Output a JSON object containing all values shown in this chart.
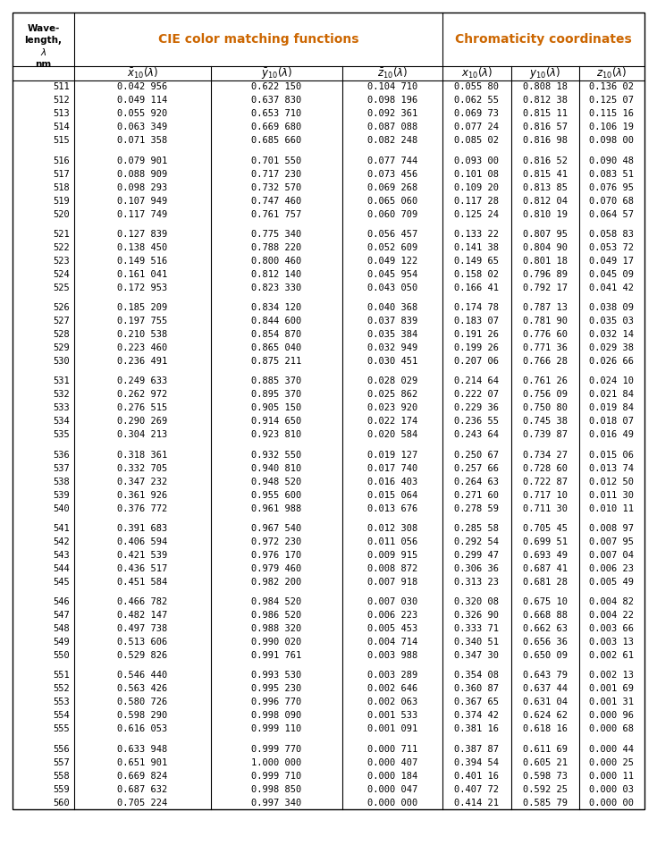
{
  "header_color": "#cc6600",
  "rows": [
    [
      511,
      "0.042 956",
      "0.622 150",
      "0.104 710",
      "0.055 80",
      "0.808 18",
      "0.136 02"
    ],
    [
      512,
      "0.049 114",
      "0.637 830",
      "0.098 196",
      "0.062 55",
      "0.812 38",
      "0.125 07"
    ],
    [
      513,
      "0.055 920",
      "0.653 710",
      "0.092 361",
      "0.069 73",
      "0.815 11",
      "0.115 16"
    ],
    [
      514,
      "0.063 349",
      "0.669 680",
      "0.087 088",
      "0.077 24",
      "0.816 57",
      "0.106 19"
    ],
    [
      515,
      "0.071 358",
      "0.685 660",
      "0.082 248",
      "0.085 02",
      "0.816 98",
      "0.098 00"
    ],
    [
      516,
      "0.079 901",
      "0.701 550",
      "0.077 744",
      "0.093 00",
      "0.816 52",
      "0.090 48"
    ],
    [
      517,
      "0.088 909",
      "0.717 230",
      "0.073 456",
      "0.101 08",
      "0.815 41",
      "0.083 51"
    ],
    [
      518,
      "0.098 293",
      "0.732 570",
      "0.069 268",
      "0.109 20",
      "0.813 85",
      "0.076 95"
    ],
    [
      519,
      "0.107 949",
      "0.747 460",
      "0.065 060",
      "0.117 28",
      "0.812 04",
      "0.070 68"
    ],
    [
      520,
      "0.117 749",
      "0.761 757",
      "0.060 709",
      "0.125 24",
      "0.810 19",
      "0.064 57"
    ],
    [
      521,
      "0.127 839",
      "0.775 340",
      "0.056 457",
      "0.133 22",
      "0.807 95",
      "0.058 83"
    ],
    [
      522,
      "0.138 450",
      "0.788 220",
      "0.052 609",
      "0.141 38",
      "0.804 90",
      "0.053 72"
    ],
    [
      523,
      "0.149 516",
      "0.800 460",
      "0.049 122",
      "0.149 65",
      "0.801 18",
      "0.049 17"
    ],
    [
      524,
      "0.161 041",
      "0.812 140",
      "0.045 954",
      "0.158 02",
      "0.796 89",
      "0.045 09"
    ],
    [
      525,
      "0.172 953",
      "0.823 330",
      "0.043 050",
      "0.166 41",
      "0.792 17",
      "0.041 42"
    ],
    [
      526,
      "0.185 209",
      "0.834 120",
      "0.040 368",
      "0.174 78",
      "0.787 13",
      "0.038 09"
    ],
    [
      527,
      "0.197 755",
      "0.844 600",
      "0.037 839",
      "0.183 07",
      "0.781 90",
      "0.035 03"
    ],
    [
      528,
      "0.210 538",
      "0.854 870",
      "0.035 384",
      "0.191 26",
      "0.776 60",
      "0.032 14"
    ],
    [
      529,
      "0.223 460",
      "0.865 040",
      "0.032 949",
      "0.199 26",
      "0.771 36",
      "0.029 38"
    ],
    [
      530,
      "0.236 491",
      "0.875 211",
      "0.030 451",
      "0.207 06",
      "0.766 28",
      "0.026 66"
    ],
    [
      531,
      "0.249 633",
      "0.885 370",
      "0.028 029",
      "0.214 64",
      "0.761 26",
      "0.024 10"
    ],
    [
      532,
      "0.262 972",
      "0.895 370",
      "0.025 862",
      "0.222 07",
      "0.756 09",
      "0.021 84"
    ],
    [
      533,
      "0.276 515",
      "0.905 150",
      "0.023 920",
      "0.229 36",
      "0.750 80",
      "0.019 84"
    ],
    [
      534,
      "0.290 269",
      "0.914 650",
      "0.022 174",
      "0.236 55",
      "0.745 38",
      "0.018 07"
    ],
    [
      535,
      "0.304 213",
      "0.923 810",
      "0.020 584",
      "0.243 64",
      "0.739 87",
      "0.016 49"
    ],
    [
      536,
      "0.318 361",
      "0.932 550",
      "0.019 127",
      "0.250 67",
      "0.734 27",
      "0.015 06"
    ],
    [
      537,
      "0.332 705",
      "0.940 810",
      "0.017 740",
      "0.257 66",
      "0.728 60",
      "0.013 74"
    ],
    [
      538,
      "0.347 232",
      "0.948 520",
      "0.016 403",
      "0.264 63",
      "0.722 87",
      "0.012 50"
    ],
    [
      539,
      "0.361 926",
      "0.955 600",
      "0.015 064",
      "0.271 60",
      "0.717 10",
      "0.011 30"
    ],
    [
      540,
      "0.376 772",
      "0.961 988",
      "0.013 676",
      "0.278 59",
      "0.711 30",
      "0.010 11"
    ],
    [
      541,
      "0.391 683",
      "0.967 540",
      "0.012 308",
      "0.285 58",
      "0.705 45",
      "0.008 97"
    ],
    [
      542,
      "0.406 594",
      "0.972 230",
      "0.011 056",
      "0.292 54",
      "0.699 51",
      "0.007 95"
    ],
    [
      543,
      "0.421 539",
      "0.976 170",
      "0.009 915",
      "0.299 47",
      "0.693 49",
      "0.007 04"
    ],
    [
      544,
      "0.436 517",
      "0.979 460",
      "0.008 872",
      "0.306 36",
      "0.687 41",
      "0.006 23"
    ],
    [
      545,
      "0.451 584",
      "0.982 200",
      "0.007 918",
      "0.313 23",
      "0.681 28",
      "0.005 49"
    ],
    [
      546,
      "0.466 782",
      "0.984 520",
      "0.007 030",
      "0.320 08",
      "0.675 10",
      "0.004 82"
    ],
    [
      547,
      "0.482 147",
      "0.986 520",
      "0.006 223",
      "0.326 90",
      "0.668 88",
      "0.004 22"
    ],
    [
      548,
      "0.497 738",
      "0.988 320",
      "0.005 453",
      "0.333 71",
      "0.662 63",
      "0.003 66"
    ],
    [
      549,
      "0.513 606",
      "0.990 020",
      "0.004 714",
      "0.340 51",
      "0.656 36",
      "0.003 13"
    ],
    [
      550,
      "0.529 826",
      "0.991 761",
      "0.003 988",
      "0.347 30",
      "0.650 09",
      "0.002 61"
    ],
    [
      551,
      "0.546 440",
      "0.993 530",
      "0.003 289",
      "0.354 08",
      "0.643 79",
      "0.002 13"
    ],
    [
      552,
      "0.563 426",
      "0.995 230",
      "0.002 646",
      "0.360 87",
      "0.637 44",
      "0.001 69"
    ],
    [
      553,
      "0.580 726",
      "0.996 770",
      "0.002 063",
      "0.367 65",
      "0.631 04",
      "0.001 31"
    ],
    [
      554,
      "0.598 290",
      "0.998 090",
      "0.001 533",
      "0.374 42",
      "0.624 62",
      "0.000 96"
    ],
    [
      555,
      "0.616 053",
      "0.999 110",
      "0.001 091",
      "0.381 16",
      "0.618 16",
      "0.000 68"
    ],
    [
      556,
      "0.633 948",
      "0.999 770",
      "0.000 711",
      "0.387 87",
      "0.611 69",
      "0.000 44"
    ],
    [
      557,
      "0.651 901",
      "1.000 000",
      "0.000 407",
      "0.394 54",
      "0.605 21",
      "0.000 25"
    ],
    [
      558,
      "0.669 824",
      "0.999 710",
      "0.000 184",
      "0.401 16",
      "0.598 73",
      "0.000 11"
    ],
    [
      559,
      "0.687 632",
      "0.998 850",
      "0.000 047",
      "0.407 72",
      "0.592 25",
      "0.000 03"
    ],
    [
      560,
      "0.705 224",
      "0.997 340",
      "0.000 000",
      "0.414 21",
      "0.585 79",
      "0.000 00"
    ]
  ],
  "fig_width": 7.35,
  "fig_height": 9.55,
  "dpi": 100
}
